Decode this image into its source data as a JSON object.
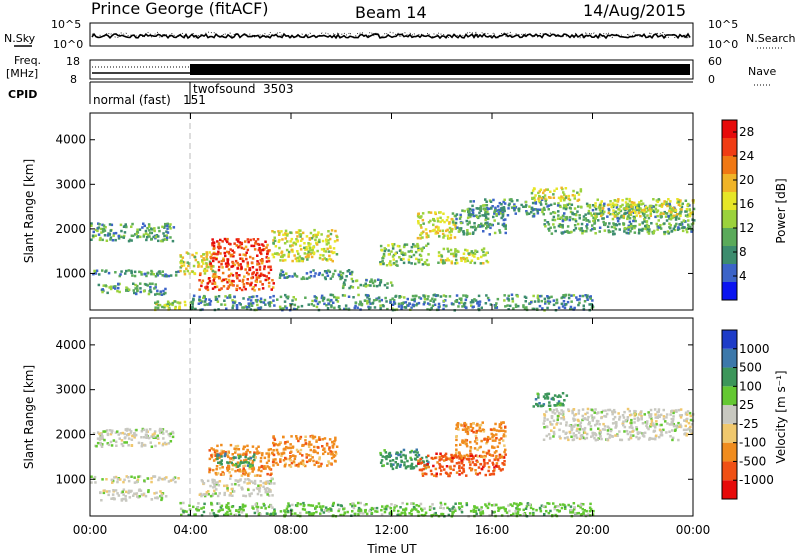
{
  "header": {
    "station": "Prince George (fitACF)",
    "beam": "Beam 14",
    "date": "14/Aug/2015"
  },
  "strip_panels": {
    "nsky_label": "N.Sky",
    "nsky_ticks": [
      "10^5",
      "10^0"
    ],
    "nsearch_label": "N.Search",
    "nsearch_ticks": [
      "10^5",
      "10^0"
    ],
    "freq_label": "Freq.",
    "freq_unit": "[MHz]",
    "freq_ticks": [
      "18",
      "8"
    ],
    "nave_label": "Nave",
    "nave_ticks": [
      "60",
      "0"
    ],
    "cpid_label": "CPID",
    "cpid_modes": [
      {
        "name": "normal (fast)",
        "id": "151",
        "start_h": 0.0
      },
      {
        "name": "twofsound",
        "id": "3503",
        "start_h": 4.0
      }
    ]
  },
  "chart_data": [
    {
      "type": "heatmap",
      "title": "",
      "xlabel": "",
      "ylabel": "Slant Range [km]",
      "xlim": [
        0,
        24
      ],
      "ylim": [
        180,
        4600
      ],
      "x_ticks": [
        0,
        4,
        8,
        12,
        16,
        20,
        24
      ],
      "y_ticks": [
        1000,
        2000,
        3000,
        4000
      ],
      "colorbar": {
        "label": "Power [dB]",
        "ticks": [
          4,
          8,
          12,
          16,
          20,
          24,
          28
        ],
        "range": [
          0,
          30
        ],
        "colors": [
          "#0a14f0",
          "#3c64c8",
          "#3c8c6e",
          "#5aaa5a",
          "#9bd23c",
          "#e6e628",
          "#f0b428",
          "#f07814",
          "#f03c14",
          "#e60a0a"
        ]
      },
      "regions": [
        {
          "t0": 0.0,
          "t1": 3.3,
          "r0": 1750,
          "r1": 2150,
          "v": 9
        },
        {
          "t0": 0.0,
          "t1": 3.5,
          "r0": 950,
          "r1": 1100,
          "v": 8
        },
        {
          "t0": 0.3,
          "t1": 3.0,
          "r0": 550,
          "r1": 800,
          "v": 9
        },
        {
          "t0": 2.5,
          "t1": 4.0,
          "r0": 200,
          "r1": 400,
          "v": 14
        },
        {
          "t0": 3.5,
          "t1": 5.0,
          "r0": 1000,
          "r1": 1500,
          "v": 16
        },
        {
          "t0": 4.3,
          "t1": 7.3,
          "r0": 650,
          "r1": 1050,
          "v": 24
        },
        {
          "t0": 4.7,
          "t1": 7.2,
          "r0": 1100,
          "r1": 1800,
          "v": 25
        },
        {
          "t0": 7.2,
          "t1": 9.8,
          "r0": 1300,
          "r1": 2000,
          "v": 16
        },
        {
          "t0": 7.5,
          "t1": 10.5,
          "r0": 900,
          "r1": 1100,
          "v": 8
        },
        {
          "t0": 10.0,
          "t1": 12.0,
          "r0": 700,
          "r1": 900,
          "v": 10
        },
        {
          "t0": 11.5,
          "t1": 13.5,
          "r0": 1200,
          "r1": 1700,
          "v": 12
        },
        {
          "t0": 13.0,
          "t1": 14.5,
          "r0": 1800,
          "r1": 2400,
          "v": 16
        },
        {
          "t0": 13.8,
          "t1": 15.8,
          "r0": 1250,
          "r1": 1600,
          "v": 14
        },
        {
          "t0": 14.5,
          "t1": 16.5,
          "r0": 1900,
          "r1": 2500,
          "v": 9
        },
        {
          "t0": 15.0,
          "t1": 18.0,
          "r0": 2300,
          "r1": 2700,
          "v": 8
        },
        {
          "t0": 17.5,
          "t1": 19.5,
          "r0": 2650,
          "r1": 2950,
          "v": 16
        },
        {
          "t0": 18.0,
          "t1": 24.0,
          "r0": 1900,
          "r1": 2600,
          "v": 10
        },
        {
          "t0": 20.0,
          "t1": 24.0,
          "r0": 2300,
          "r1": 2700,
          "v": 16
        },
        {
          "t0": 4.0,
          "t1": 20.0,
          "r0": 200,
          "r1": 550,
          "v": 8
        }
      ]
    },
    {
      "type": "heatmap",
      "title": "",
      "xlabel": "Time UT",
      "ylabel": "Slant Range [km]",
      "xlim": [
        0,
        24
      ],
      "ylim": [
        180,
        4600
      ],
      "x_ticks": [
        0,
        4,
        8,
        12,
        16,
        20,
        24
      ],
      "x_tick_labels": [
        "00:00",
        "04:00",
        "08:00",
        "12:00",
        "16:00",
        "20:00",
        "00:00"
      ],
      "y_ticks": [
        1000,
        2000,
        3000,
        4000
      ],
      "colorbar": {
        "label": "Velocity [m s⁻¹]",
        "ticks": [
          "1000",
          "500",
          "100",
          "25",
          "-25",
          "-100",
          "-500",
          "-1000"
        ],
        "colors": [
          "#1e3cc8",
          "#3c78aa",
          "#3c965a",
          "#64c832",
          "#c8c8c0",
          "#f0c86e",
          "#f08c1e",
          "#f05014",
          "#e60a0a"
        ]
      },
      "regions": [
        {
          "t0": 0.0,
          "t1": 3.3,
          "r0": 1750,
          "r1": 2150,
          "cat": 4
        },
        {
          "t0": 0.0,
          "t1": 3.5,
          "r0": 950,
          "r1": 1100,
          "cat": 4
        },
        {
          "t0": 0.3,
          "t1": 3.0,
          "r0": 550,
          "r1": 800,
          "cat": 4
        },
        {
          "t0": 4.3,
          "t1": 7.3,
          "r0": 650,
          "r1": 1050,
          "cat": 4
        },
        {
          "t0": 4.7,
          "t1": 7.2,
          "r0": 1100,
          "r1": 1800,
          "cat": 6
        },
        {
          "t0": 5.0,
          "t1": 6.5,
          "r0": 1300,
          "r1": 1600,
          "cat": 2
        },
        {
          "t0": 7.2,
          "t1": 9.8,
          "r0": 1300,
          "r1": 2000,
          "cat": 6
        },
        {
          "t0": 11.5,
          "t1": 13.5,
          "r0": 1250,
          "r1": 1700,
          "cat": 2
        },
        {
          "t0": 13.0,
          "t1": 16.5,
          "r0": 1100,
          "r1": 1600,
          "cat": 7
        },
        {
          "t0": 14.5,
          "t1": 16.5,
          "r0": 1500,
          "r1": 2300,
          "cat": 6
        },
        {
          "t0": 17.5,
          "t1": 19.0,
          "r0": 2650,
          "r1": 2950,
          "cat": 2
        },
        {
          "t0": 18.0,
          "t1": 24.0,
          "r0": 1900,
          "r1": 2600,
          "cat": 4
        },
        {
          "t0": 3.5,
          "t1": 20.0,
          "r0": 200,
          "r1": 500,
          "cat": 3
        }
      ]
    }
  ]
}
